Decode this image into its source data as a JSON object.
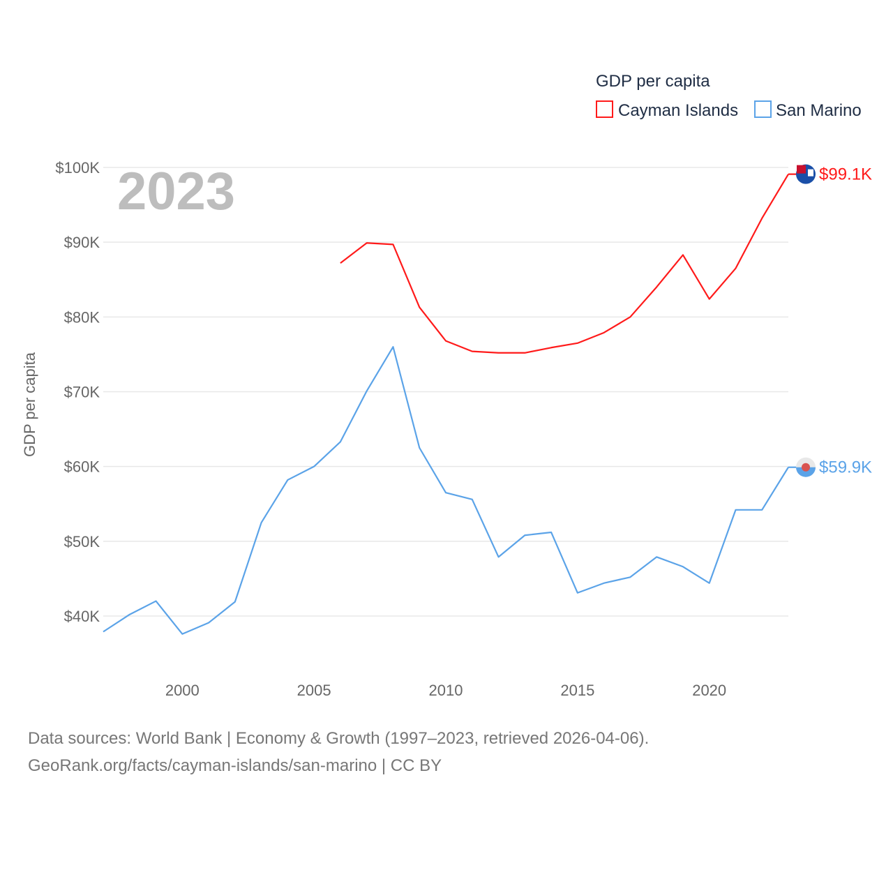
{
  "chart_data": {
    "type": "line",
    "title": "",
    "current_year_label": "2023",
    "xlabel": "",
    "ylabel": "GDP per capita",
    "xlim": [
      1997,
      2023
    ],
    "ylim": [
      40,
      100
    ],
    "x_ticks": [
      2000,
      2005,
      2010,
      2015,
      2020
    ],
    "y_ticks": [
      40,
      50,
      60,
      70,
      80,
      90,
      100
    ],
    "y_tick_labels": [
      "$40K",
      "$50K",
      "$60K",
      "$70K",
      "$80K",
      "$90K",
      "$100K"
    ],
    "grid": true,
    "legend": {
      "title": "GDP per capita",
      "placement": "top-right"
    },
    "series": [
      {
        "name": "Cayman Islands",
        "color": "#ff1a1a",
        "end_label": "$99.1K",
        "icon": "cayman-islands-flag-icon",
        "x": [
          2006,
          2007,
          2008,
          2009,
          2010,
          2011,
          2012,
          2013,
          2014,
          2015,
          2016,
          2017,
          2018,
          2019,
          2020,
          2021,
          2022,
          2023
        ],
        "values": [
          87.2,
          89.9,
          89.7,
          81.3,
          76.8,
          75.4,
          75.2,
          75.2,
          75.9,
          76.5,
          77.9,
          80.0,
          84.0,
          88.3,
          82.4,
          86.5,
          93.2,
          99.1
        ]
      },
      {
        "name": "San Marino",
        "color": "#5ba3e8",
        "end_label": "$59.9K",
        "icon": "san-marino-flag-icon",
        "x": [
          1997,
          1998,
          1999,
          2000,
          2001,
          2002,
          2003,
          2004,
          2005,
          2006,
          2007,
          2008,
          2009,
          2010,
          2011,
          2012,
          2013,
          2014,
          2015,
          2016,
          2017,
          2018,
          2019,
          2020,
          2021,
          2022,
          2023
        ],
        "values": [
          37.9,
          40.2,
          42.0,
          37.6,
          39.1,
          41.9,
          52.5,
          58.2,
          60.0,
          63.3,
          70.1,
          76.0,
          62.5,
          56.5,
          55.6,
          47.9,
          50.8,
          51.2,
          43.1,
          44.4,
          45.2,
          47.9,
          46.6,
          44.4,
          54.2,
          54.2,
          59.9
        ]
      }
    ]
  },
  "footer": {
    "line1": "Data sources: World Bank | Economy & Growth (1997–2023, retrieved 2026-04-06).",
    "line2": "GeoRank.org/facts/cayman-islands/san-marino | CC BY"
  }
}
